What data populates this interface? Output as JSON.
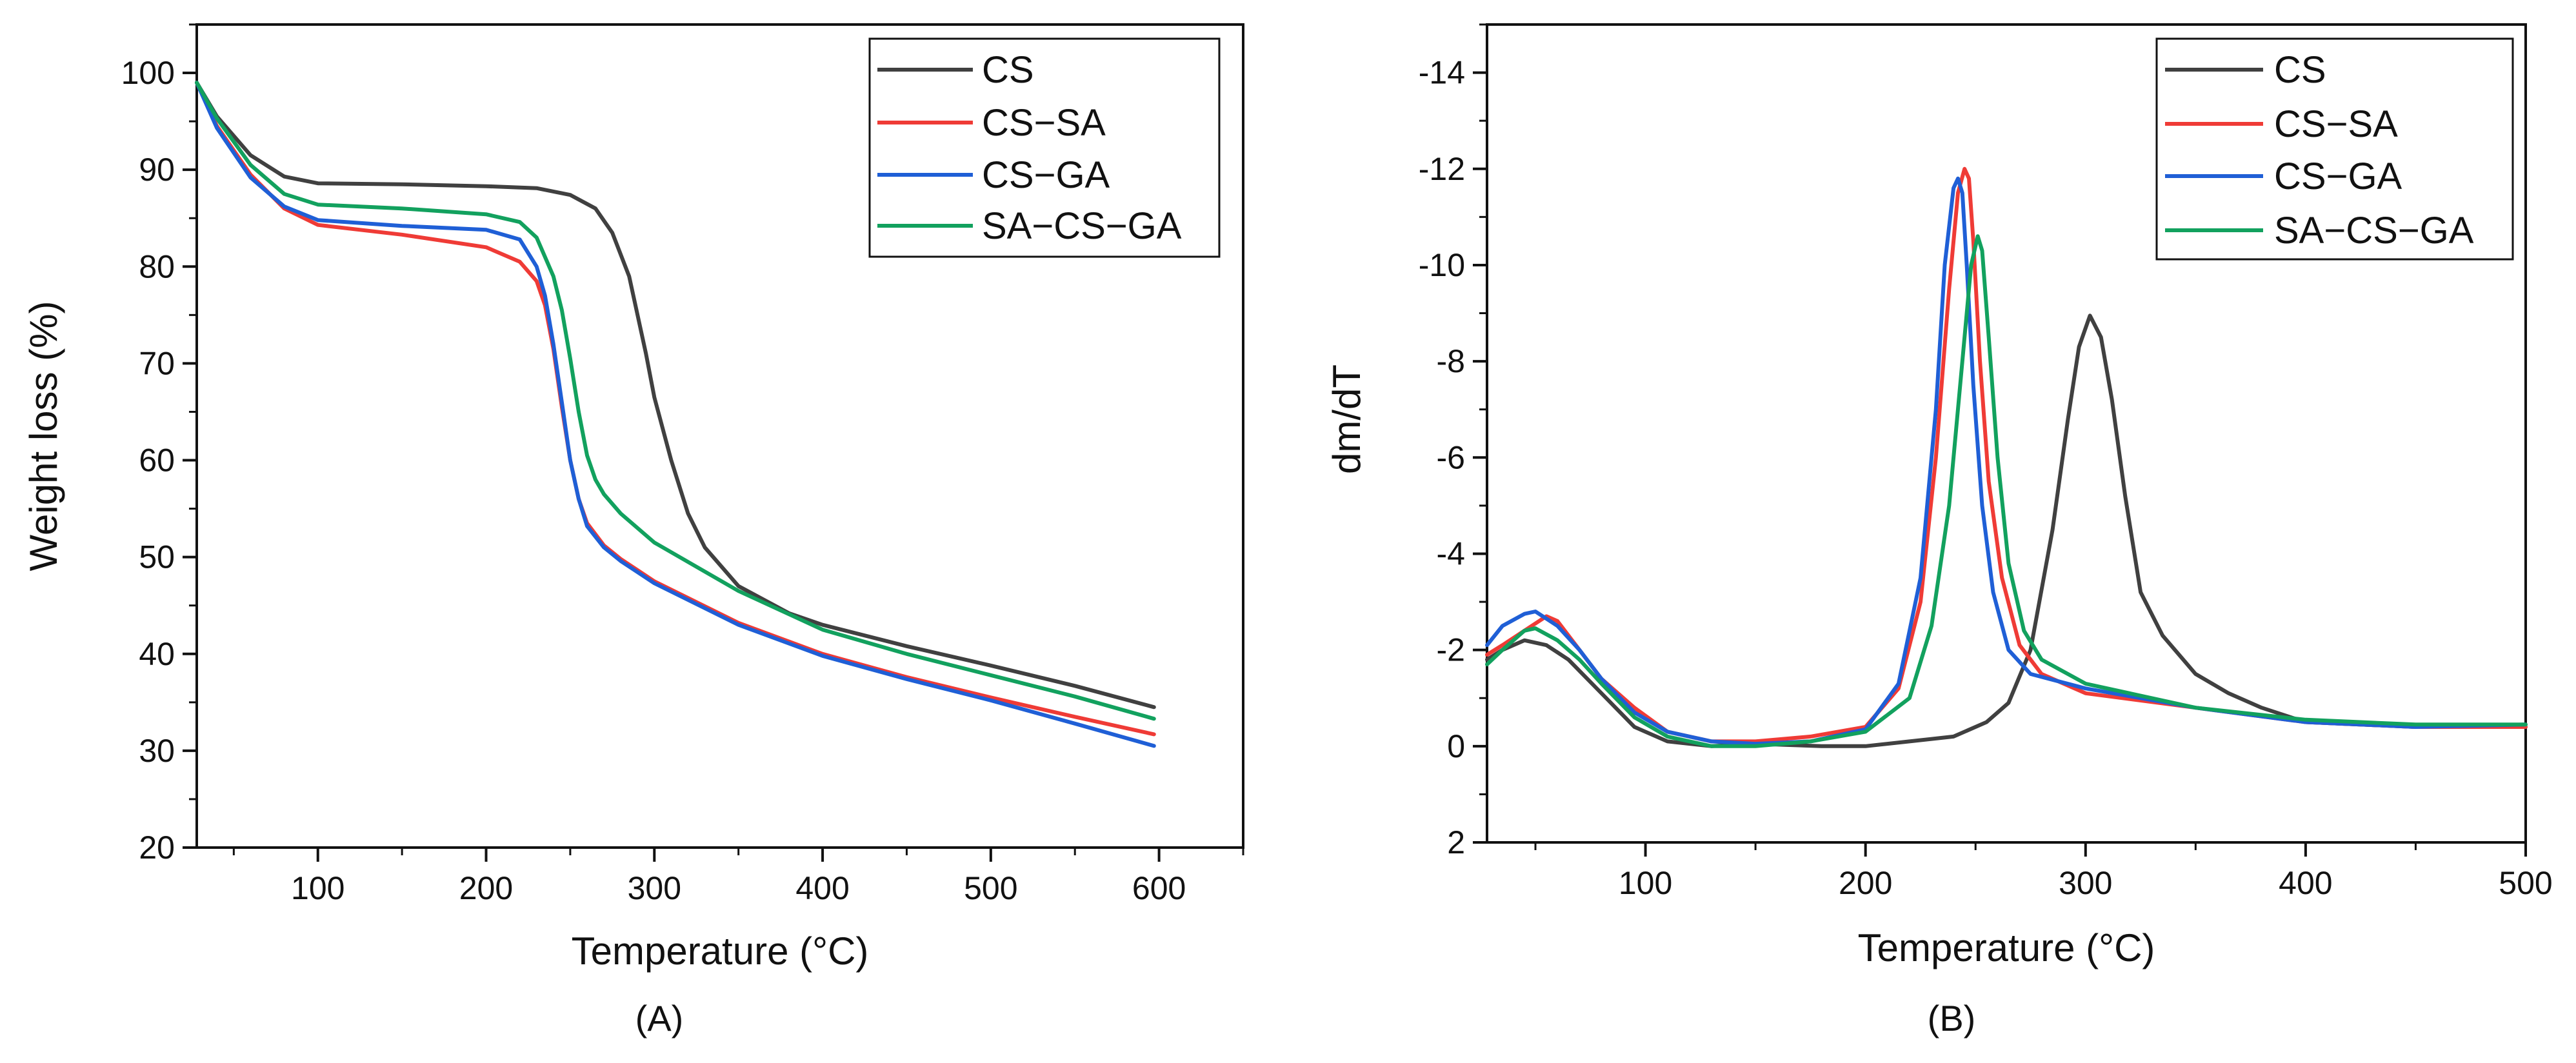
{
  "colors": {
    "CS": "#404040",
    "CS-SA": "#ef3b36",
    "CS-GA": "#1f5fd6",
    "SA-CS-GA": "#12a15e",
    "axis": "#111111"
  },
  "chart_data": [
    {
      "type": "line",
      "panel_label": "(A)",
      "title": "",
      "xlabel": "Temperature (°C)",
      "ylabel": "Weight loss (%)",
      "xlim": [
        28,
        650
      ],
      "ylim": [
        20,
        105
      ],
      "xticks": [
        100,
        200,
        300,
        400,
        500,
        600
      ],
      "xtick_labels": [
        "100",
        "200",
        "300",
        "400",
        "500",
        "600"
      ],
      "yticks": [
        20,
        30,
        40,
        50,
        60,
        70,
        80,
        90,
        100
      ],
      "ytick_labels": [
        "20",
        "30",
        "40",
        "50",
        "60",
        "70",
        "80",
        "90",
        "100"
      ],
      "legend_position": "top-right",
      "legend": [
        "CS",
        "CS−SA",
        "CS−GA",
        "SA−CS−GA"
      ],
      "series": [
        {
          "name": "CS",
          "x": [
            28,
            40,
            60,
            80,
            100,
            150,
            200,
            230,
            250,
            265,
            275,
            285,
            295,
            300,
            310,
            320,
            330,
            350,
            380,
            400,
            450,
            500,
            550,
            597
          ],
          "y": [
            99,
            95.5,
            91.5,
            89.3,
            88.6,
            88.5,
            88.3,
            88.1,
            87.4,
            86,
            83.5,
            79,
            71,
            66.5,
            60,
            54.5,
            51,
            47,
            44.2,
            43,
            40.8,
            38.8,
            36.7,
            34.5
          ]
        },
        {
          "name": "CS-SA",
          "x": [
            28,
            40,
            60,
            80,
            100,
            150,
            200,
            220,
            230,
            235,
            240,
            245,
            250,
            255,
            260,
            270,
            280,
            300,
            350,
            400,
            450,
            500,
            550,
            597
          ],
          "y": [
            99,
            94.5,
            89.5,
            86,
            84.3,
            83.3,
            82,
            80.5,
            78.5,
            76,
            71.5,
            65.5,
            60,
            56,
            53.5,
            51.2,
            49.8,
            47.5,
            43.2,
            40,
            37.6,
            35.5,
            33.5,
            31.7
          ]
        },
        {
          "name": "CS-GA",
          "x": [
            28,
            40,
            60,
            80,
            100,
            150,
            200,
            220,
            230,
            235,
            240,
            245,
            250,
            255,
            260,
            270,
            280,
            300,
            350,
            400,
            450,
            500,
            550,
            597
          ],
          "y": [
            99,
            94.3,
            89.2,
            86.2,
            84.8,
            84.2,
            83.8,
            82.8,
            80,
            77,
            72,
            66,
            60,
            56,
            53.2,
            51,
            49.6,
            47.3,
            43,
            39.8,
            37.4,
            35.2,
            32.8,
            30.5
          ]
        },
        {
          "name": "SA-CS-GA",
          "x": [
            28,
            40,
            60,
            80,
            100,
            150,
            200,
            220,
            230,
            240,
            245,
            250,
            255,
            260,
            265,
            270,
            280,
            300,
            350,
            400,
            450,
            500,
            550,
            597
          ],
          "y": [
            99,
            95.3,
            90.5,
            87.5,
            86.4,
            86,
            85.4,
            84.6,
            83,
            79,
            75.5,
            70.5,
            65,
            60.5,
            58,
            56.5,
            54.5,
            51.5,
            46.5,
            42.5,
            40,
            37.8,
            35.6,
            33.3
          ]
        }
      ]
    },
    {
      "type": "line",
      "panel_label": "(B)",
      "title": "",
      "xlabel": "Temperature (°C)",
      "ylabel": "dm/dT",
      "xlim": [
        28,
        500
      ],
      "ylim": [
        2,
        -15
      ],
      "y_inverted": true,
      "xticks": [
        100,
        200,
        300,
        400,
        500
      ],
      "xtick_labels": [
        "100",
        "200",
        "300",
        "400",
        "500"
      ],
      "yticks": [
        2,
        0,
        -2,
        -4,
        -6,
        -8,
        -10,
        -12,
        -14
      ],
      "ytick_labels": [
        "2",
        "0",
        "-2",
        "-4",
        "-6",
        "-8",
        "-10",
        "-12",
        "-14"
      ],
      "legend_position": "top-right",
      "legend": [
        "CS",
        "CS−SA",
        "CS−GA",
        "SA−CS−GA"
      ],
      "series": [
        {
          "name": "CS",
          "x": [
            28,
            35,
            45,
            55,
            65,
            80,
            95,
            110,
            130,
            150,
            180,
            200,
            220,
            240,
            255,
            265,
            275,
            285,
            292,
            297,
            302,
            307,
            312,
            318,
            325,
            335,
            350,
            365,
            380,
            400,
            450,
            500
          ],
          "y": [
            -1.8,
            -2.0,
            -2.2,
            -2.1,
            -1.8,
            -1.1,
            -0.4,
            -0.1,
            0,
            -0.05,
            0,
            0,
            -0.1,
            -0.2,
            -0.5,
            -0.9,
            -2.0,
            -4.5,
            -6.8,
            -8.3,
            -8.95,
            -8.5,
            -7.2,
            -5.2,
            -3.2,
            -2.3,
            -1.5,
            -1.1,
            -0.8,
            -0.5,
            -0.4,
            -0.4
          ]
        },
        {
          "name": "CS-SA",
          "x": [
            28,
            35,
            45,
            55,
            60,
            70,
            80,
            95,
            110,
            130,
            150,
            175,
            200,
            215,
            225,
            232,
            238,
            242,
            245,
            247,
            249,
            252,
            256,
            262,
            270,
            280,
            300,
            350,
            400,
            450,
            500
          ],
          "y": [
            -1.9,
            -2.1,
            -2.4,
            -2.7,
            -2.6,
            -2.0,
            -1.4,
            -0.8,
            -0.3,
            -0.1,
            -0.1,
            -0.2,
            -0.4,
            -1.2,
            -3.0,
            -6.0,
            -9.5,
            -11.5,
            -12.0,
            -11.8,
            -10.5,
            -8.0,
            -5.5,
            -3.5,
            -2.1,
            -1.5,
            -1.1,
            -0.8,
            -0.5,
            -0.4,
            -0.4
          ]
        },
        {
          "name": "CS-GA",
          "x": [
            28,
            35,
            45,
            50,
            60,
            70,
            80,
            95,
            110,
            130,
            150,
            175,
            200,
            215,
            225,
            232,
            236,
            240,
            242,
            244,
            246,
            249,
            253,
            258,
            265,
            275,
            300,
            350,
            400,
            450,
            500
          ],
          "y": [
            -2.1,
            -2.5,
            -2.75,
            -2.8,
            -2.5,
            -2.0,
            -1.4,
            -0.7,
            -0.3,
            -0.1,
            -0.05,
            -0.1,
            -0.35,
            -1.3,
            -3.5,
            -7.0,
            -10.0,
            -11.6,
            -11.8,
            -11.5,
            -10.0,
            -7.5,
            -5.0,
            -3.2,
            -2.0,
            -1.5,
            -1.2,
            -0.8,
            -0.5,
            -0.4,
            -0.45
          ]
        },
        {
          "name": "SA-CS-GA",
          "x": [
            28,
            35,
            45,
            50,
            60,
            70,
            80,
            95,
            110,
            130,
            150,
            175,
            200,
            220,
            230,
            238,
            244,
            248,
            251,
            253,
            256,
            260,
            265,
            272,
            280,
            300,
            320,
            350,
            400,
            450,
            500
          ],
          "y": [
            -1.7,
            -2.0,
            -2.4,
            -2.45,
            -2.2,
            -1.8,
            -1.3,
            -0.6,
            -0.2,
            0,
            0,
            -0.1,
            -0.3,
            -1.0,
            -2.5,
            -5.0,
            -8.0,
            -10.0,
            -10.6,
            -10.3,
            -8.5,
            -6.0,
            -3.8,
            -2.4,
            -1.8,
            -1.3,
            -1.1,
            -0.8,
            -0.55,
            -0.45,
            -0.45
          ]
        }
      ]
    }
  ]
}
